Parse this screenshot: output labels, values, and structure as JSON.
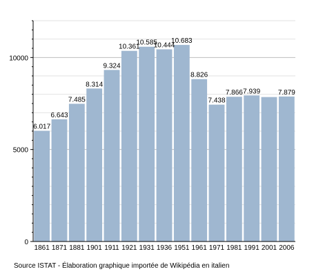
{
  "chart_data": {
    "type": "bar",
    "categories": [
      "1861",
      "1871",
      "1881",
      "1901",
      "1911",
      "1921",
      "1931",
      "1936",
      "1951",
      "1961",
      "1971",
      "1981",
      "1991",
      "2001",
      "2006"
    ],
    "values": [
      6017,
      6643,
      7485,
      8314,
      9324,
      10361,
      10585,
      10444,
      10683,
      8826,
      7438,
      7866,
      7939,
      7850,
      7879
    ],
    "data_labels": [
      "6.017",
      "6.643",
      "7.485",
      "8.314",
      "9.324",
      "10.361",
      "10.585",
      "10.444",
      "10.683",
      "8.826",
      "7.438",
      "7.866",
      "7.939",
      "",
      "7.879"
    ],
    "ylim": [
      0,
      12000
    ],
    "y_ticks": [
      0,
      5000,
      10000
    ],
    "y_tick_labels": [
      "0",
      "5000",
      "10000"
    ],
    "grid": true,
    "bar_color": "#9fb7d0",
    "grid_color": "#c0c0c0",
    "caption": "Source ISTAT - Élaboration graphique importée de Wikipédia en italien"
  }
}
